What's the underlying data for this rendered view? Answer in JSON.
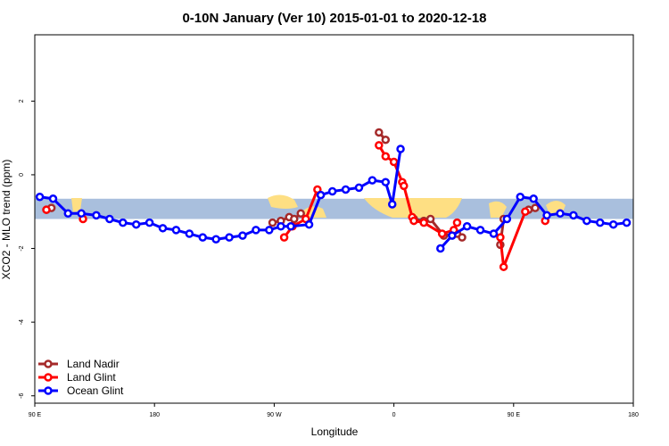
{
  "chart_data": {
    "type": "line",
    "title": "0-10N January (Ver 10)   2015-01-01 to 2020-12-18",
    "xlabel": "Longitude",
    "ylabel": "XCO2 - MLO trend (ppm)",
    "xlim": [
      0,
      360
    ],
    "ylim": [
      -6.2,
      3.8
    ],
    "x_ticks": [
      {
        "value": 0,
        "label": "90 E"
      },
      {
        "value": 72,
        "label": "180"
      },
      {
        "value": 144,
        "label": "90 W"
      },
      {
        "value": 216,
        "label": "0"
      },
      {
        "value": 288,
        "label": "90 E"
      },
      {
        "value": 360,
        "label": "180"
      }
    ],
    "y_ticks": [
      2,
      0,
      -2,
      -4,
      -6
    ],
    "grid": false,
    "legend_position": "bottom-left",
    "band": {
      "y_min": -1.2,
      "y_max": -0.65,
      "color": "#a9bfdd",
      "land_color": "#fedf83"
    },
    "series": [
      {
        "name": "Land Nadir",
        "color": "#a52a2a",
        "points": [
          [
            7,
            -0.95
          ],
          [
            10,
            -0.9
          ],
          [
            143,
            -1.3
          ],
          [
            148,
            -1.25
          ],
          [
            153,
            -1.15
          ],
          [
            156,
            -1.2
          ],
          [
            160,
            -1.05
          ],
          [
            207,
            1.15
          ],
          [
            211,
            0.95
          ],
          [
            228,
            -1.2
          ],
          [
            234,
            -1.25
          ],
          [
            238,
            -1.2
          ],
          [
            246,
            -1.65
          ],
          [
            254,
            -1.6
          ],
          [
            257,
            -1.7
          ],
          [
            280,
            -1.9
          ],
          [
            282,
            -1.2
          ],
          [
            297,
            -0.95
          ],
          [
            301,
            -0.9
          ]
        ],
        "segments": [
          [
            0,
            1
          ],
          [
            2,
            6
          ],
          [
            7,
            8
          ],
          [
            9,
            14
          ],
          [
            15,
            16
          ],
          [
            17,
            18
          ]
        ]
      },
      {
        "name": "Land Glint",
        "color": "#ff0000",
        "points": [
          [
            7,
            -0.95
          ],
          [
            29,
            -1.2
          ],
          [
            150,
            -1.7
          ],
          [
            155,
            -1.4
          ],
          [
            163,
            -1.2
          ],
          [
            170,
            -0.4
          ],
          [
            207,
            0.8
          ],
          [
            211,
            0.5
          ],
          [
            216,
            0.35
          ],
          [
            221,
            -0.2
          ],
          [
            222,
            -0.3
          ],
          [
            227,
            -1.15
          ],
          [
            228,
            -1.25
          ],
          [
            234,
            -1.3
          ],
          [
            245,
            -1.6
          ],
          [
            252,
            -1.5
          ],
          [
            254,
            -1.3
          ],
          [
            280,
            -1.7
          ],
          [
            282,
            -2.5
          ],
          [
            295,
            -1.0
          ],
          [
            307,
            -1.25
          ]
        ],
        "segments": [
          [
            0,
            0
          ],
          [
            1,
            1
          ],
          [
            2,
            5
          ],
          [
            6,
            16
          ],
          [
            17,
            19
          ],
          [
            20,
            20
          ]
        ]
      },
      {
        "name": "Ocean Glint",
        "color": "#0000ff",
        "points": [
          [
            3,
            -0.6
          ],
          [
            11,
            -0.65
          ],
          [
            20,
            -1.05
          ],
          [
            28,
            -1.05
          ],
          [
            37,
            -1.1
          ],
          [
            45,
            -1.2
          ],
          [
            53,
            -1.3
          ],
          [
            61,
            -1.35
          ],
          [
            69,
            -1.3
          ],
          [
            77,
            -1.45
          ],
          [
            85,
            -1.5
          ],
          [
            93,
            -1.6
          ],
          [
            101,
            -1.7
          ],
          [
            109,
            -1.75
          ],
          [
            117,
            -1.7
          ],
          [
            125,
            -1.65
          ],
          [
            133,
            -1.5
          ],
          [
            141,
            -1.5
          ],
          [
            148,
            -1.4
          ],
          [
            154,
            -1.4
          ],
          [
            165,
            -1.35
          ],
          [
            172,
            -0.55
          ],
          [
            179,
            -0.45
          ],
          [
            187,
            -0.4
          ],
          [
            195,
            -0.35
          ],
          [
            203,
            -0.15
          ],
          [
            211,
            -0.2
          ],
          [
            215,
            -0.8
          ],
          [
            220,
            0.7
          ],
          [
            244,
            -2.0
          ],
          [
            251,
            -1.65
          ],
          [
            260,
            -1.4
          ],
          [
            268,
            -1.5
          ],
          [
            276,
            -1.6
          ],
          [
            284,
            -1.2
          ],
          [
            292,
            -0.6
          ],
          [
            300,
            -0.65
          ],
          [
            308,
            -1.1
          ],
          [
            316,
            -1.05
          ],
          [
            324,
            -1.1
          ],
          [
            332,
            -1.25
          ],
          [
            340,
            -1.3
          ],
          [
            348,
            -1.35
          ],
          [
            356,
            -1.3
          ]
        ],
        "segments": [
          [
            0,
            28
          ],
          [
            29,
            43
          ]
        ]
      }
    ]
  }
}
